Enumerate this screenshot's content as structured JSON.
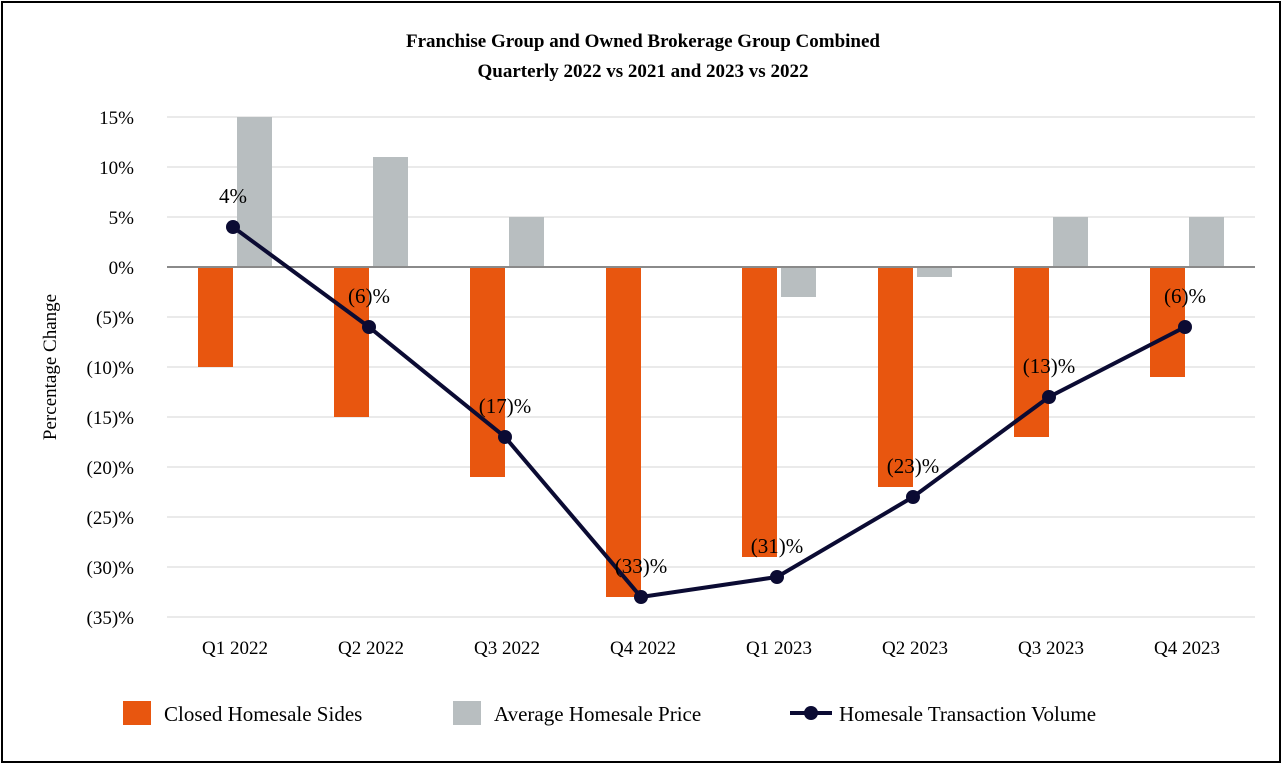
{
  "chart_data": {
    "type": "bar",
    "title": "Franchise Group and Owned Brokerage Group Combined",
    "subtitle": "Quarterly 2022 vs 2021 and 2023 vs 2022",
    "xlabel": "",
    "ylabel": "Percentage Change",
    "ylim": [
      -35,
      15
    ],
    "yticks": [
      15,
      10,
      5,
      0,
      -5,
      -10,
      -15,
      -20,
      -25,
      -30,
      -35
    ],
    "ytick_labels": [
      "15%",
      "10%",
      "5%",
      "0%",
      "(5)%",
      "(10)%",
      "(15)%",
      "(20)%",
      "(25)%",
      "(30)%",
      "(35)%"
    ],
    "grid": true,
    "legend_position": "bottom",
    "categories": [
      "Q1 2022",
      "Q2 2022",
      "Q3 2022",
      "Q4 2022",
      "Q1 2023",
      "Q2 2023",
      "Q3 2023",
      "Q4 2023"
    ],
    "series": [
      {
        "name": "Closed Homesale Sides",
        "kind": "bar",
        "color": "#E8560F",
        "values": [
          -10,
          -15,
          -21,
          -33,
          -29,
          -22,
          -17,
          -11
        ]
      },
      {
        "name": "Average Homesale Price",
        "kind": "bar",
        "color": "#B8BEC0",
        "values": [
          15,
          11,
          5,
          0,
          -3,
          -1,
          5,
          5
        ]
      },
      {
        "name": "Homesale Transaction Volume",
        "kind": "line",
        "color": "#0B0B33",
        "values": [
          4,
          -6,
          -17,
          -33,
          -31,
          -23,
          -13,
          -6
        ],
        "labels": [
          "4%",
          "(6)%",
          "(17)%",
          "(33)%",
          "(31)%",
          "(23)%",
          "(13)%",
          "(6)%"
        ]
      }
    ]
  }
}
